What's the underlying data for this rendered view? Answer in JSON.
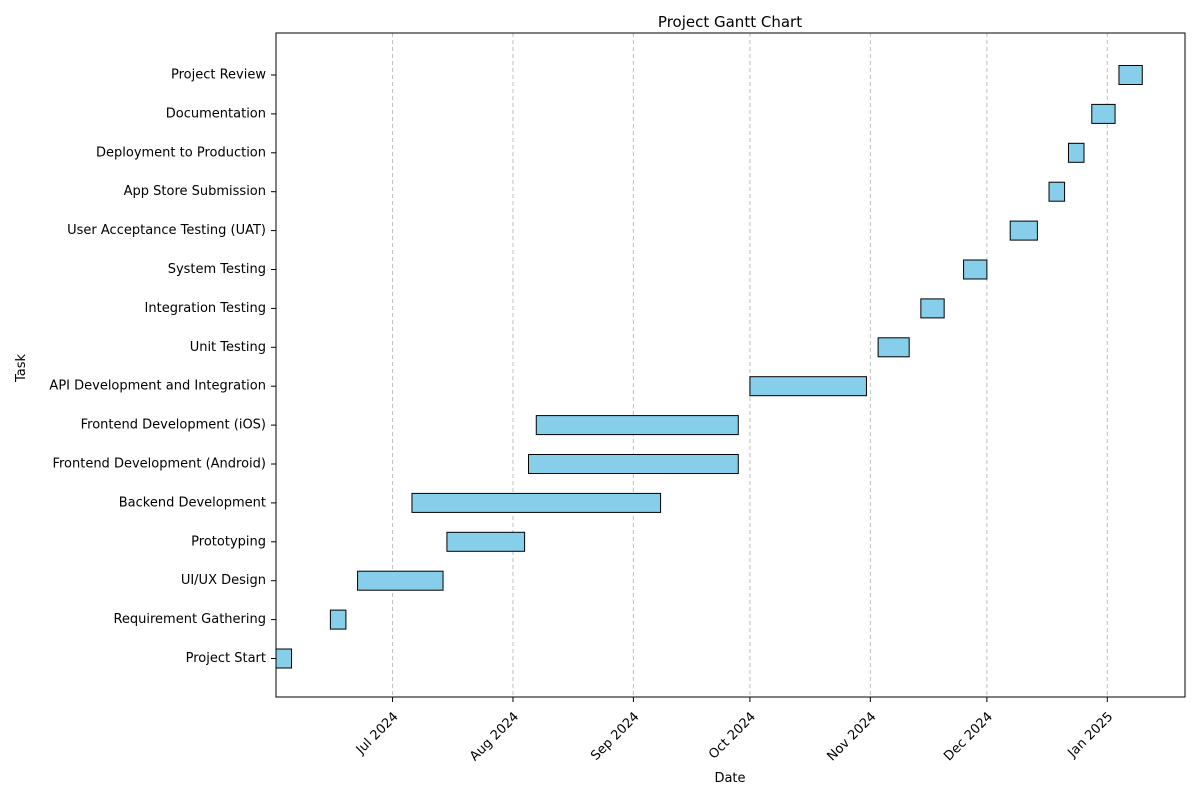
{
  "chart_data": {
    "type": "gantt",
    "title": "Project Gantt Chart",
    "xlabel": "Date",
    "ylabel": "Task",
    "xlim": [
      "2024-06-01",
      "2025-01-21"
    ],
    "grid": {
      "x": true,
      "y": false,
      "style": "dashed"
    },
    "bar_color": "#87ceeb",
    "bar_edge_color": "#000000",
    "grid_color": "#c0c0c0",
    "x_ticks": [
      {
        "date": "2024-07-01",
        "label": "Jul 2024"
      },
      {
        "date": "2024-08-01",
        "label": "Aug 2024"
      },
      {
        "date": "2024-09-01",
        "label": "Sep 2024"
      },
      {
        "date": "2024-10-01",
        "label": "Oct 2024"
      },
      {
        "date": "2024-11-01",
        "label": "Nov 2024"
      },
      {
        "date": "2024-12-01",
        "label": "Dec 2024"
      },
      {
        "date": "2025-01-01",
        "label": "Jan 2025"
      }
    ],
    "tasks": [
      {
        "name": "Project Start",
        "start": "2024-06-01",
        "end": "2024-06-05"
      },
      {
        "name": "Requirement Gathering",
        "start": "2024-06-15",
        "end": "2024-06-19"
      },
      {
        "name": "UI/UX Design",
        "start": "2024-06-22",
        "end": "2024-07-14"
      },
      {
        "name": "Prototyping",
        "start": "2024-07-15",
        "end": "2024-08-04"
      },
      {
        "name": "Backend Development",
        "start": "2024-07-06",
        "end": "2024-09-08"
      },
      {
        "name": "Frontend Development (Android)",
        "start": "2024-08-05",
        "end": "2024-09-28"
      },
      {
        "name": "Frontend Development (iOS)",
        "start": "2024-08-07",
        "end": "2024-09-28"
      },
      {
        "name": "API Development and Integration",
        "start": "2024-10-01",
        "end": "2024-10-31"
      },
      {
        "name": "Unit Testing",
        "start": "2024-11-03",
        "end": "2024-11-11"
      },
      {
        "name": "Integration Testing",
        "start": "2024-11-14",
        "end": "2024-11-20"
      },
      {
        "name": "System Testing",
        "start": "2024-11-25",
        "end": "2024-12-01"
      },
      {
        "name": "User Acceptance Testing (UAT)",
        "start": "2024-12-07",
        "end": "2024-12-14"
      },
      {
        "name": "App Store Submission",
        "start": "2024-12-17",
        "end": "2024-12-21"
      },
      {
        "name": "Deployment to Production",
        "start": "2024-12-22",
        "end": "2024-12-26"
      },
      {
        "name": "Documentation",
        "start": "2024-12-28",
        "end": "2025-01-03"
      },
      {
        "name": "Project Review",
        "start": "2025-01-04",
        "end": "2025-01-10"
      }
    ]
  }
}
